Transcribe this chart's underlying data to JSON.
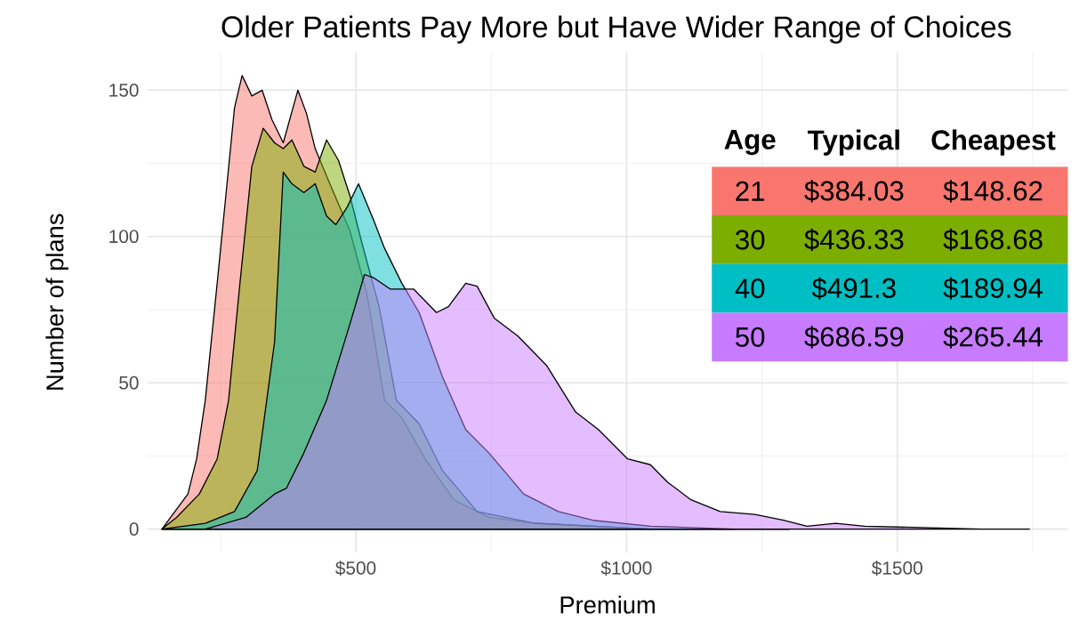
{
  "chart_data": {
    "type": "area",
    "title": "Older Patients Pay More but Have Wider Range of Choices",
    "xlabel": "Premium",
    "ylabel": "Number of plans",
    "legend_title": "Age",
    "annotations": [
      "Typical",
      "Cheapest",
      "$384.03",
      "$148.62",
      "$436.33",
      "$168.68",
      "$491.3",
      "$189.94",
      "$686.59",
      "$265.44"
    ],
    "series": [
      {
        "name": "21",
        "color": "#f8766d",
        "x": [
          142,
          158,
          190,
          206,
          222,
          244,
          260,
          276,
          290,
          308,
          327,
          345,
          366,
          393,
          409,
          425,
          452,
          489,
          521,
          553,
          585,
          628,
          681,
          746,
          831,
          1045,
          1300
        ],
        "values": [
          0,
          4,
          12,
          24,
          44,
          84,
          114,
          144,
          155,
          148,
          150,
          140,
          132,
          150,
          142,
          130,
          118,
          102,
          80,
          44,
          38,
          24,
          10,
          4,
          2,
          0,
          0
        ]
      },
      {
        "name": "30",
        "color": "#7cae00",
        "x": [
          142,
          169,
          211,
          244,
          265,
          286,
          308,
          329,
          350,
          366,
          382,
          404,
          425,
          446,
          468,
          489,
          511,
          543,
          575,
          617,
          660,
          724,
          831,
          1045,
          1300
        ],
        "values": [
          0,
          4,
          12,
          24,
          44,
          84,
          124,
          137,
          132,
          130,
          133,
          124,
          122,
          133,
          126,
          114,
          98,
          76,
          44,
          36,
          20,
          6,
          2,
          0,
          0
        ]
      },
      {
        "name": "40",
        "color": "#00bfc4",
        "x": [
          142,
          222,
          276,
          318,
          350,
          366,
          382,
          404,
          425,
          446,
          463,
          484,
          505,
          532,
          553,
          585,
          617,
          660,
          703,
          746,
          810,
          874,
          938,
          1045,
          1200
        ],
        "values": [
          0,
          2,
          6,
          20,
          64,
          122,
          118,
          115,
          118,
          107,
          104,
          110,
          118,
          106,
          96,
          84,
          74,
          52,
          34,
          26,
          12,
          6,
          3,
          1,
          0
        ]
      },
      {
        "name": "50",
        "color": "#c77cff",
        "x": [
          142,
          222,
          297,
          350,
          372,
          404,
          446,
          489,
          516,
          532,
          564,
          607,
          649,
          671,
          703,
          724,
          756,
          799,
          852,
          906,
          948,
          1002,
          1044,
          1076,
          1119,
          1173,
          1237,
          1290,
          1333,
          1386,
          1440,
          1546,
          1653,
          1744
        ],
        "values": [
          0,
          0,
          4,
          12,
          14,
          26,
          44,
          70,
          87,
          86,
          82,
          82,
          74,
          76,
          84,
          83,
          72,
          66,
          56,
          40,
          34,
          24,
          22,
          16,
          10,
          6,
          5,
          3,
          1,
          2,
          1,
          0.5,
          0,
          0
        ]
      }
    ],
    "xlim": [
      115,
      1815
    ],
    "ylim": [
      -8,
      163
    ],
    "xticks": [
      {
        "value": 500,
        "label": "$500"
      },
      {
        "value": 1000,
        "label": "$1000"
      },
      {
        "value": 1500,
        "label": "$1500"
      }
    ],
    "yticks": [
      0,
      50,
      100,
      150
    ],
    "grid": true,
    "legend": "top right"
  }
}
